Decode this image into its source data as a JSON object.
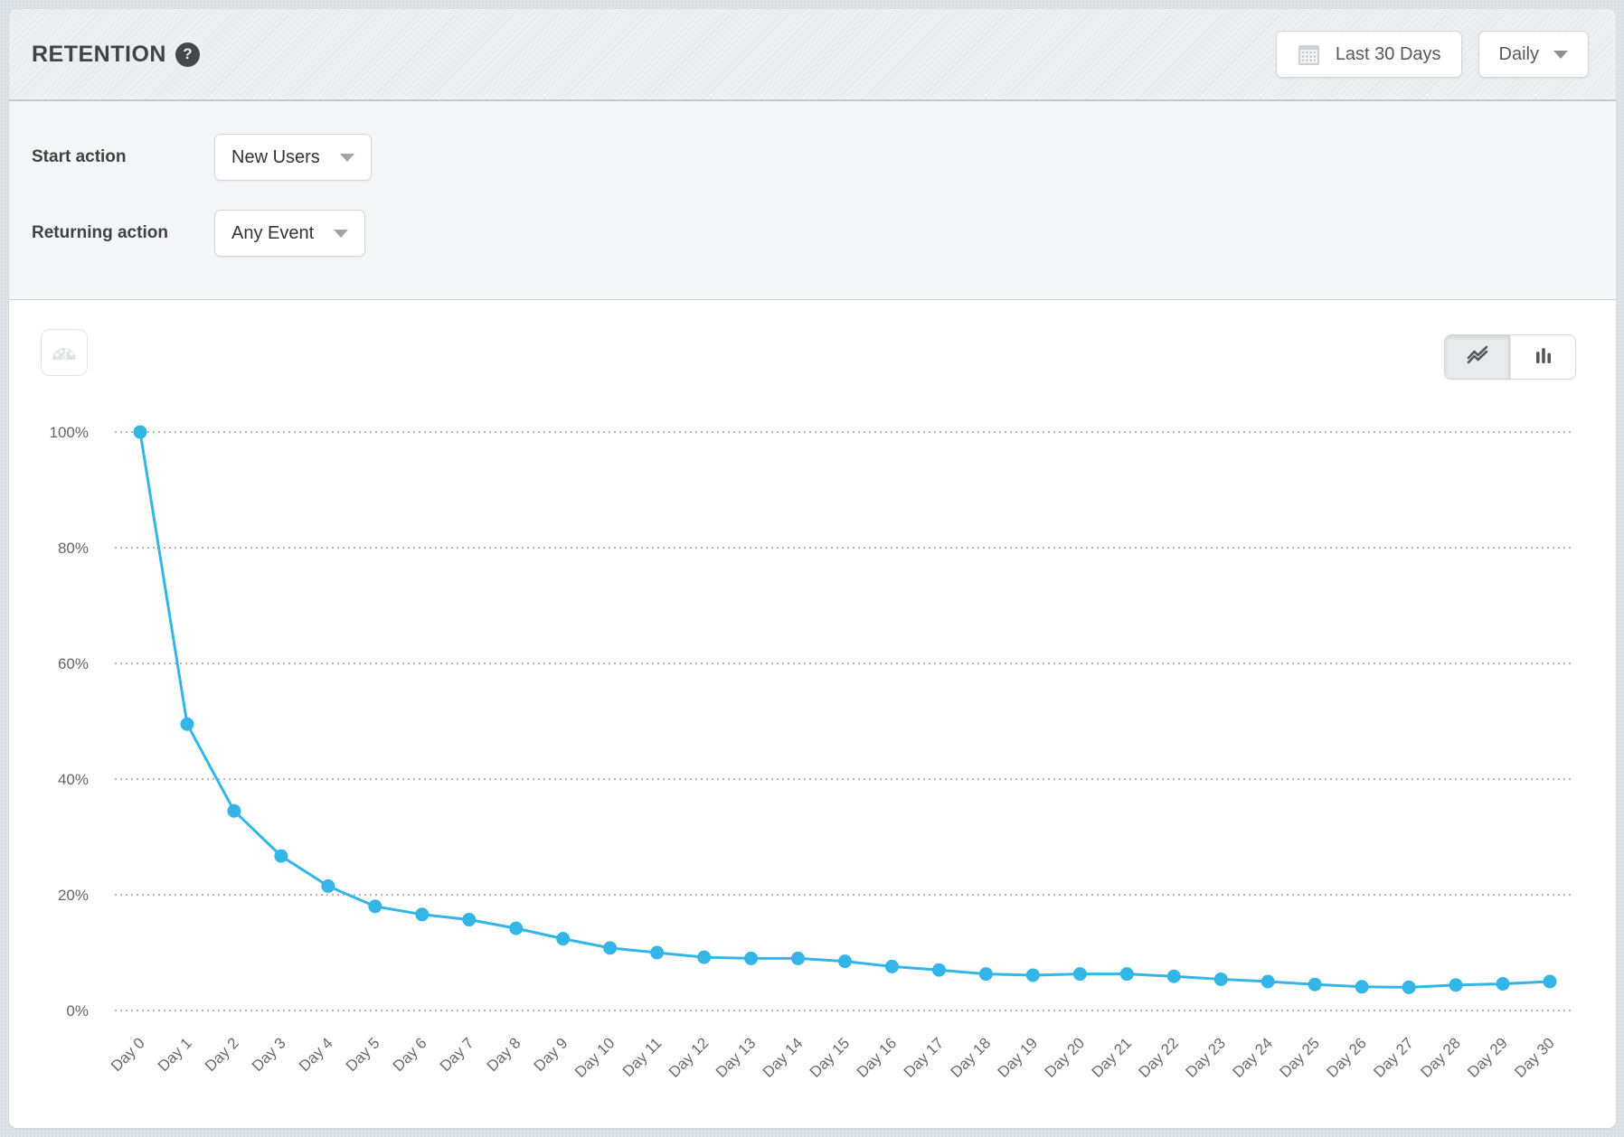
{
  "header": {
    "title": "RETENTION",
    "help_icon": "?",
    "date_range_button": {
      "label": "Last 30 Days",
      "icon": "calendar-icon"
    },
    "granularity_dropdown": {
      "value": "Daily"
    }
  },
  "filters": {
    "start_action": {
      "label": "Start action",
      "value": "New Users"
    },
    "returning_action": {
      "label": "Returning action",
      "value": "Any Event"
    }
  },
  "chart_toolbar": {
    "gauge_button_icon": "speedometer-icon",
    "chart_type_options": [
      "line",
      "bar"
    ],
    "chart_type_active": "line"
  },
  "chart_data": {
    "type": "line",
    "title": "",
    "xlabel": "",
    "ylabel": "",
    "x": [
      "Day 0",
      "Day 1",
      "Day 2",
      "Day 3",
      "Day 4",
      "Day 5",
      "Day 6",
      "Day 7",
      "Day 8",
      "Day 9",
      "Day 10",
      "Day 11",
      "Day 12",
      "Day 13",
      "Day 14",
      "Day 15",
      "Day 16",
      "Day 17",
      "Day 18",
      "Day 19",
      "Day 20",
      "Day 21",
      "Day 22",
      "Day 23",
      "Day 24",
      "Day 25",
      "Day 26",
      "Day 27",
      "Day 28",
      "Day 29",
      "Day 30"
    ],
    "series": [
      {
        "name": "retention",
        "values": [
          100,
          49.5,
          34.5,
          26.7,
          21.5,
          18,
          16.6,
          15.7,
          14.2,
          12.4,
          10.8,
          10,
          9.2,
          9,
          9,
          8.5,
          7.6,
          7,
          6.3,
          6.1,
          6.3,
          6.3,
          5.9,
          5.4,
          5,
          4.5,
          4.1,
          4,
          4.4,
          4.6,
          5
        ]
      }
    ],
    "ylim": [
      0,
      100
    ],
    "y_ticks": [
      0,
      20,
      40,
      60,
      80,
      100
    ],
    "y_tick_labels": [
      "0%",
      "20%",
      "40%",
      "60%",
      "80%",
      "100%"
    ],
    "grid": "horizontal-dotted",
    "legend": "none",
    "colors": {
      "line": "#33b5e8",
      "point": "#33b5e8",
      "gridline": "#b4b7ba",
      "y_tick_text": "#606568",
      "x_tick_text": "#676b6f"
    }
  }
}
